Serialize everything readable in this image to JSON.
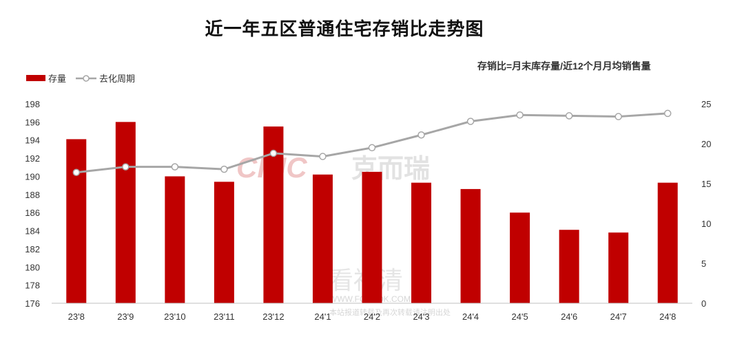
{
  "chart_data": {
    "type": "bar",
    "title": "近一年五区普通住宅存销比走势图",
    "subtitle": "存销比=月末库存量/近12个月月均销售量",
    "categories": [
      "23'8",
      "23'9",
      "23'10",
      "23'11",
      "23'12",
      "24'1",
      "24'2",
      "24'3",
      "24'4",
      "24'5",
      "24'6",
      "24'7",
      "24'8"
    ],
    "series": [
      {
        "name": "存量",
        "type": "bar",
        "axis": "left",
        "color": "#c00000",
        "values": [
          194.1,
          196.0,
          190.0,
          189.4,
          195.5,
          190.2,
          190.5,
          189.3,
          188.6,
          186.0,
          184.1,
          183.8,
          189.3
        ]
      },
      {
        "name": "去化周期",
        "type": "line",
        "axis": "right",
        "color": "#a6a6a6",
        "values": [
          16.4,
          17.1,
          17.1,
          16.8,
          18.8,
          18.4,
          19.5,
          21.1,
          22.8,
          23.6,
          23.5,
          23.4,
          23.8
        ]
      }
    ],
    "y_left": {
      "min": 176,
      "max": 198,
      "step": 2
    },
    "y_right": {
      "min": 0,
      "max": 25,
      "step": 5
    },
    "legend_position": "top-left",
    "grid": false
  },
  "watermarks": {
    "brand_latin": "CRIC",
    "brand_cn": "克而瑞",
    "site_cn": "看福清",
    "site_url": "WWW.FQLOOK.COM",
    "notice": "本站报道转载及再次转载请注明出处"
  }
}
